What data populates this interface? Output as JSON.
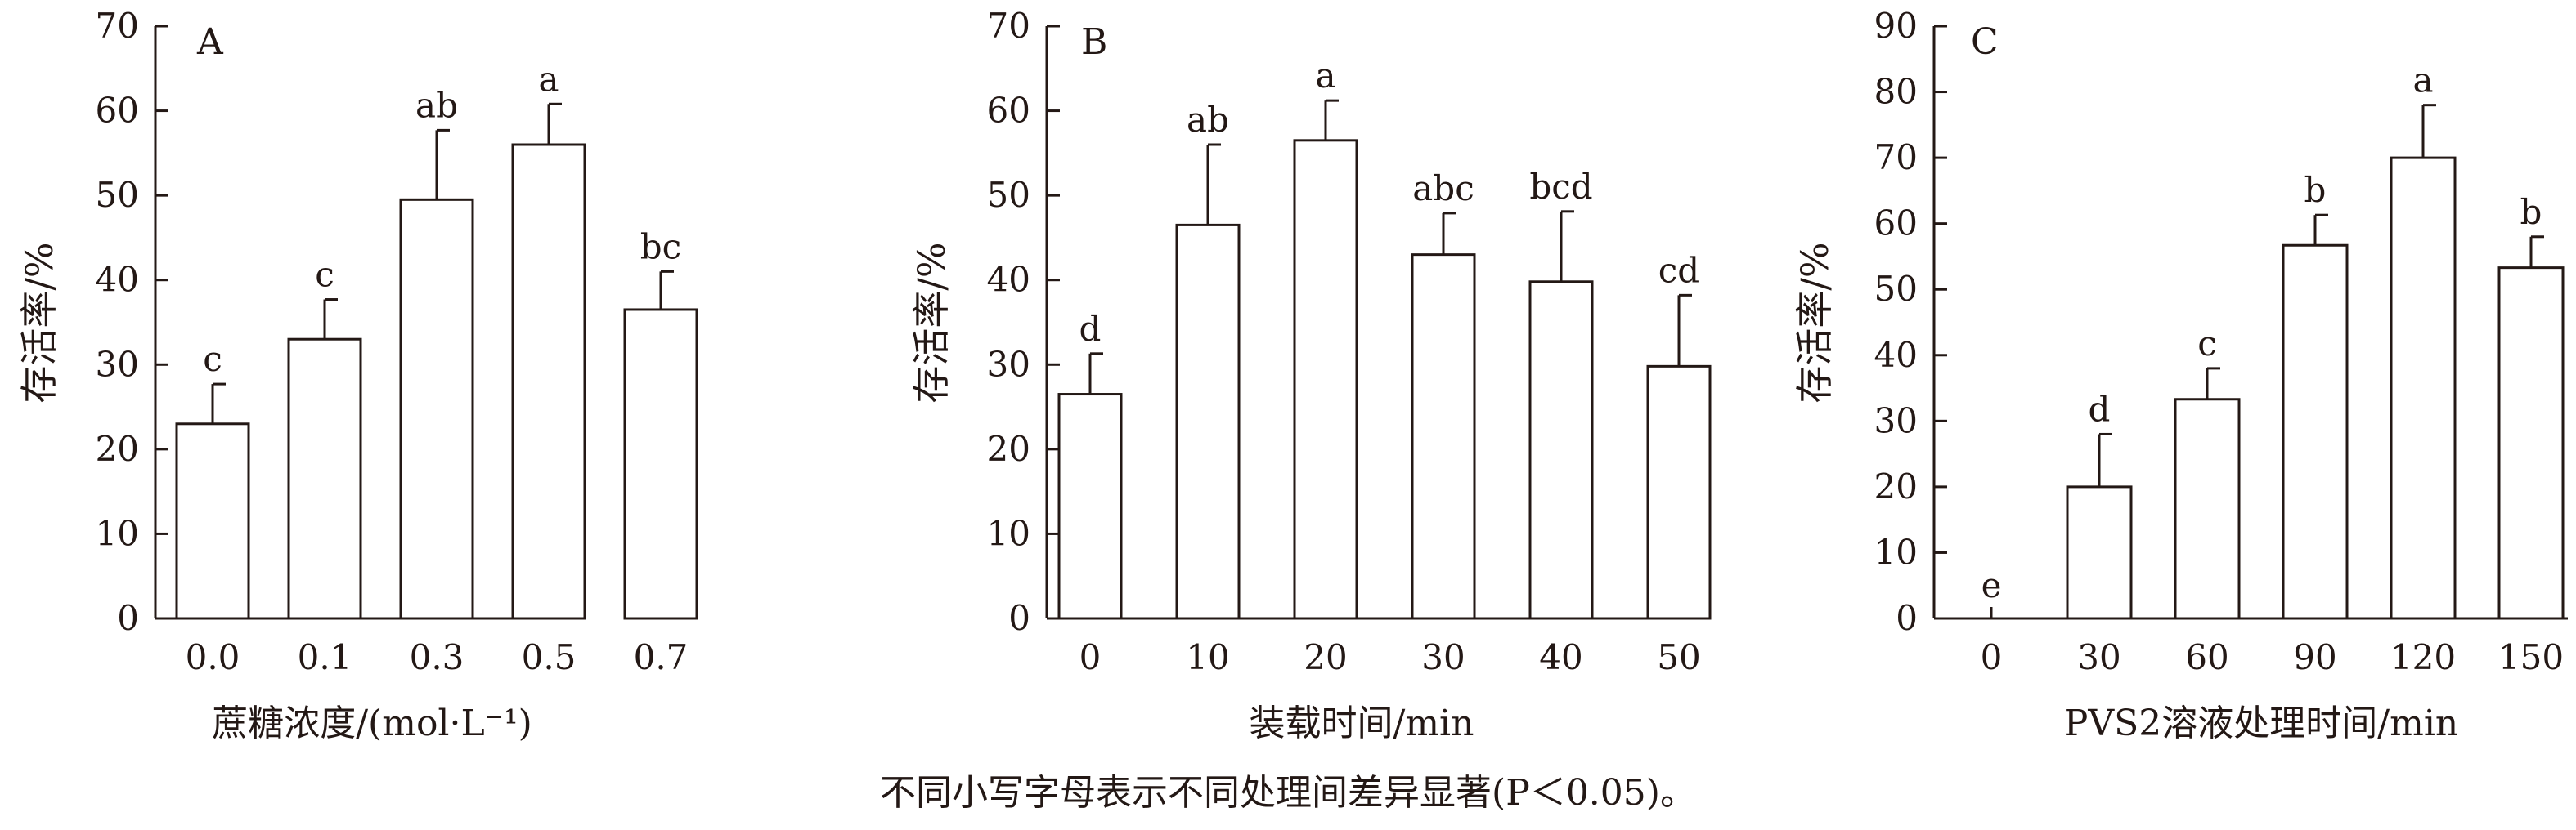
{
  "figure_note": "不同小写字母表示不同处理间差异显著(P＜0.05)。",
  "chart_data": [
    {
      "panel": "A",
      "type": "bar",
      "xlabel": "蔗糖浓度/(mol·L⁻¹)",
      "ylabel": "存活率/%",
      "ylim": [
        0,
        70
      ],
      "yticks": [
        "0",
        "10",
        "20",
        "30",
        "40",
        "50",
        "60",
        "70"
      ],
      "categories": [
        "0.0",
        "0.1",
        "0.3",
        "0.5",
        "0.7"
      ],
      "values": [
        23,
        33,
        49.5,
        56,
        36.5
      ],
      "errors": [
        4.7,
        4.7,
        8.2,
        4.8,
        4.5
      ],
      "letters": [
        "c",
        "c",
        "ab",
        "a",
        "bc"
      ]
    },
    {
      "panel": "B",
      "type": "bar",
      "xlabel": "装载时间/min",
      "ylabel": "存活率/%",
      "ylim": [
        0,
        70
      ],
      "yticks": [
        "0",
        "10",
        "20",
        "30",
        "40",
        "50",
        "60",
        "70"
      ],
      "categories": [
        "0",
        "10",
        "20",
        "30",
        "40",
        "50"
      ],
      "values": [
        26.5,
        46.5,
        56.5,
        43,
        39.8,
        29.8
      ],
      "errors": [
        4.8,
        9.5,
        4.7,
        4.9,
        8.3,
        8.4
      ],
      "letters": [
        "d",
        "ab",
        "a",
        "abc",
        "bcd",
        "cd"
      ]
    },
    {
      "panel": "C",
      "type": "bar",
      "xlabel": "PVS2溶液处理时间/min",
      "ylabel": "存活率/%",
      "ylim": [
        0,
        90
      ],
      "yticks": [
        "0",
        "10",
        "20",
        "30",
        "40",
        "50",
        "60",
        "70",
        "80",
        "90"
      ],
      "categories": [
        "0",
        "30",
        "60",
        "90",
        "120",
        "150"
      ],
      "values": [
        0,
        20,
        33.3,
        56.7,
        70,
        53.3
      ],
      "errors": [
        0,
        8,
        4.7,
        4.6,
        8,
        4.7
      ],
      "letters": [
        "e",
        "d",
        "c",
        "b",
        "a",
        "b"
      ]
    }
  ]
}
